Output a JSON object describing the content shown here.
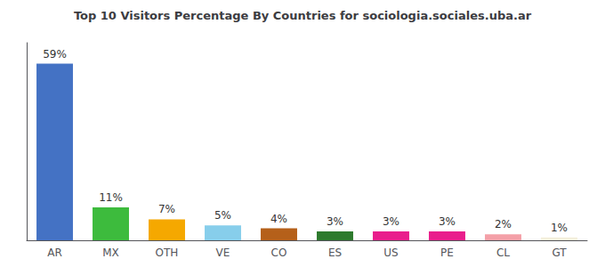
{
  "chart_data": {
    "type": "bar",
    "title": "Top 10 Visitors Percentage By Countries for sociologia.sociales.uba.ar",
    "categories": [
      "AR",
      "MX",
      "OTH",
      "VE",
      "CO",
      "ES",
      "US",
      "PE",
      "CL",
      "GT"
    ],
    "values": [
      59,
      11,
      7,
      5,
      4,
      3,
      3,
      3,
      2,
      1
    ],
    "value_labels": [
      "59%",
      "11%",
      "7%",
      "5%",
      "4%",
      "3%",
      "3%",
      "3%",
      "2%",
      "1%"
    ],
    "colors": [
      "#4472c4",
      "#3dbb3d",
      "#f5a800",
      "#87ceeb",
      "#b5601a",
      "#2d7a2d",
      "#e91e8c",
      "#e91e8c",
      "#f4a0a8",
      "#f5f0dc"
    ],
    "ylim": [
      0,
      66
    ],
    "grid": false,
    "data_labels": true,
    "tick_labels": "x"
  }
}
